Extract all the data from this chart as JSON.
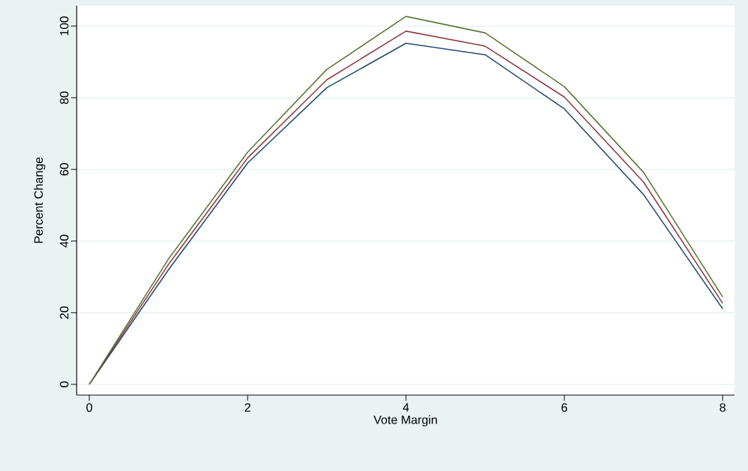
{
  "chart_data": {
    "type": "line",
    "xlabel": "Vote Margin",
    "ylabel": "Percent Change",
    "x": [
      0,
      1,
      2,
      3,
      4,
      5,
      6,
      7,
      8
    ],
    "series": [
      {
        "color": "#1a476f",
        "values": [
          0,
          32,
          61.8,
          82.8,
          95.2,
          92.0,
          76.9,
          53.0,
          21.1
        ]
      },
      {
        "color": "#90353b",
        "values": [
          0,
          33.5,
          63.2,
          85.0,
          98.6,
          94.4,
          80.2,
          56.5,
          22.6
        ]
      },
      {
        "color": "#55752f",
        "values": [
          0,
          35,
          64.8,
          87.9,
          102.7,
          98.1,
          83.1,
          59.2,
          24.4
        ]
      }
    ],
    "xlim": [
      -0.16,
      8.15
    ],
    "ylim": [
      -3,
      105.7
    ],
    "xticks": [
      0,
      2,
      4,
      6,
      8
    ],
    "yticks": [
      0,
      20,
      40,
      60,
      80,
      100
    ],
    "grid": "y",
    "marker": "none",
    "line_style": "solid"
  }
}
